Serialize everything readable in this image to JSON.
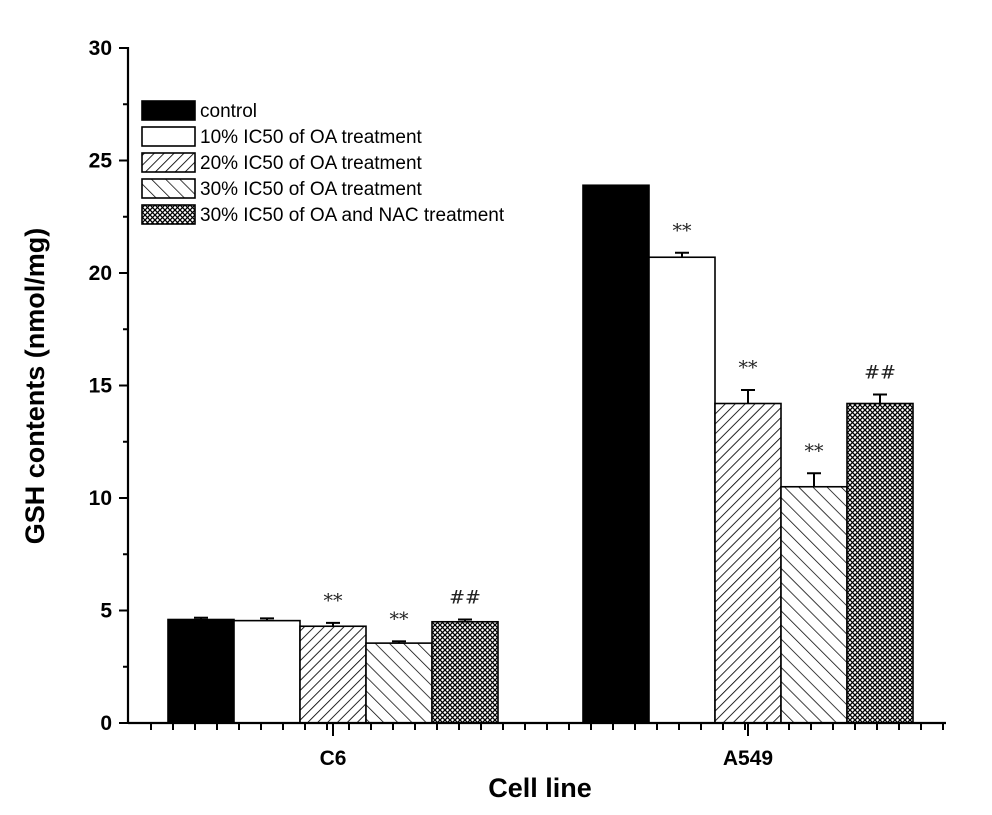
{
  "chart_data": {
    "type": "bar",
    "title": "",
    "xlabel": "Cell line",
    "ylabel": "GSH contents (nmol/mg)",
    "ylim": [
      0,
      30
    ],
    "yticks": [
      "0",
      "5",
      "10",
      "15",
      "20",
      "25",
      "30"
    ],
    "categories": [
      "C6",
      "A549"
    ],
    "legend_position": "top-left",
    "grid": false,
    "series": [
      {
        "name": "control",
        "pattern": "solid-black",
        "values": [
          4.6,
          23.9
        ],
        "errors": [
          0.08,
          0.0
        ],
        "annotations": [
          "",
          ""
        ]
      },
      {
        "name": "10% IC50 of OA treatment",
        "pattern": "white",
        "values": [
          4.55,
          20.7
        ],
        "errors": [
          0.1,
          0.2
        ],
        "annotations": [
          "",
          "**"
        ]
      },
      {
        "name": "20% IC50 of OA treatment",
        "pattern": "dense-diagonal-hatch",
        "values": [
          4.3,
          14.2
        ],
        "errors": [
          0.15,
          0.6
        ],
        "annotations": [
          "**",
          "**"
        ]
      },
      {
        "name": "30% IC50 of OA treatment",
        "pattern": "sparse-diagonal-hatch",
        "values": [
          3.55,
          10.5
        ],
        "errors": [
          0.08,
          0.6
        ],
        "annotations": [
          "**",
          "**"
        ]
      },
      {
        "name": "30% IC50 of OA and NAC treatment",
        "pattern": "crosshatch",
        "values": [
          4.5,
          14.2
        ],
        "errors": [
          0.1,
          0.4
        ],
        "annotations": [
          "##",
          "##"
        ]
      }
    ]
  }
}
